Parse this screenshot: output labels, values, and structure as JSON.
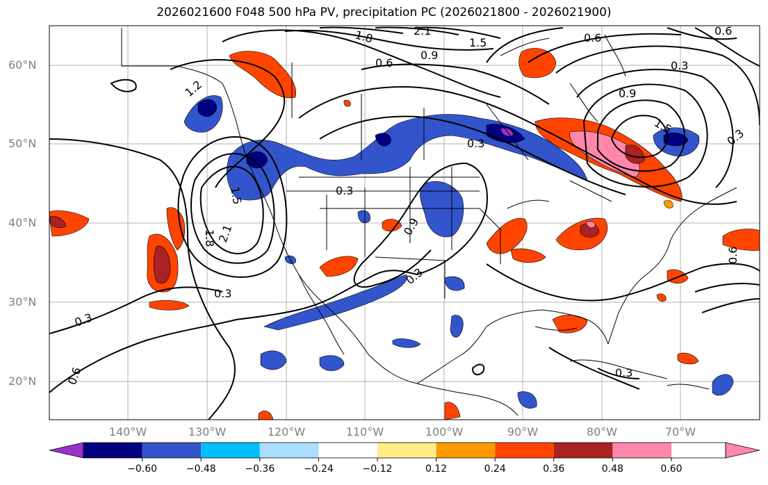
{
  "title": "2026021600 F048 500 hPa PV, precipitation PC (2026021800 - 2026021900)",
  "lat_labels": [
    "60°N",
    "50°N",
    "40°N",
    "30°N",
    "20°N"
  ],
  "lon_labels": [
    "140°W",
    "130°W",
    "120°W",
    "110°W",
    "100°W",
    "90°W",
    "80°W",
    "70°W"
  ],
  "contour_labels": [
    "1.8",
    "2.1",
    "1.5",
    "0.9",
    "0.6",
    "0.3",
    "1.2",
    "0.6",
    "0.9",
    "1.5",
    "0.3",
    "1.8",
    "2.1",
    "0.3",
    "0.9",
    "0.3",
    "0.3",
    "0.3",
    "0.6",
    "0.6",
    "0.3",
    "1.5",
    "0.3",
    "0.6"
  ],
  "colorbar": {
    "ticks": [
      "−0.60",
      "−0.48",
      "−0.36",
      "−0.24",
      "−0.12",
      "0.12",
      "0.24",
      "0.36",
      "0.48",
      "0.60"
    ],
    "colors": [
      "#9933cc",
      "#000080",
      "#3355cc",
      "#00bfff",
      "#aaddff",
      "#ffffff",
      "#ffee88",
      "#ff9900",
      "#ff4400",
      "#aa2222",
      "#ff88aa"
    ]
  }
}
